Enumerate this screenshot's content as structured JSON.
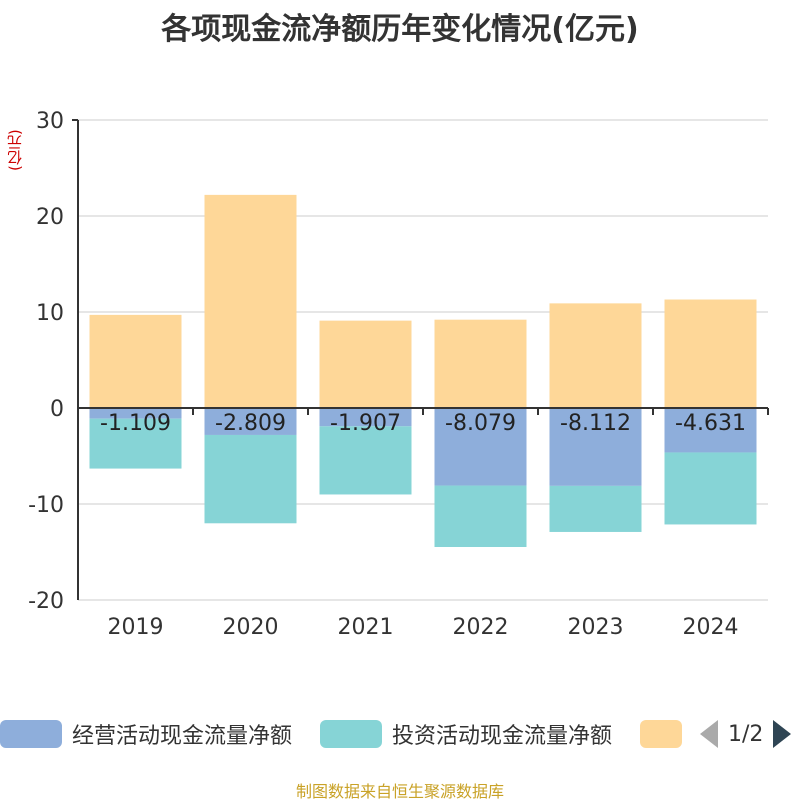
{
  "chart_data": {
    "type": "bar",
    "stacked": true,
    "title": "各项现金流净额历年变化情况(亿元)",
    "ylabel": "(亿元)",
    "ylim": [
      -20,
      30
    ],
    "yticks": [
      30,
      20,
      10,
      0,
      -10,
      -20
    ],
    "categories": [
      "2019",
      "2020",
      "2021",
      "2022",
      "2023",
      "2024"
    ],
    "series": [
      {
        "name": "经营活动现金流量净额",
        "color": "#8eaedb",
        "values": [
          -1.109,
          -2.809,
          -1.907,
          -8.079,
          -8.112,
          -4.631
        ],
        "labels": [
          "-1.109",
          "-2.809",
          "-1.907",
          "-8.079",
          "-8.112",
          "-4.631"
        ]
      },
      {
        "name": "投资活动现金流量净额",
        "color": "#86d4d6",
        "values": [
          -5.2,
          -9.2,
          -7.1,
          -6.4,
          -4.8,
          -7.5
        ]
      },
      {
        "name": "",
        "color": "#fed798",
        "values": [
          9.7,
          22.2,
          9.1,
          9.2,
          10.9,
          11.3
        ]
      }
    ],
    "legend": {
      "items": [
        {
          "label": "经营活动现金流量净额",
          "color": "#8eaedb"
        },
        {
          "label": "投资活动现金流量净额",
          "color": "#86d4d6"
        },
        {
          "label": "",
          "color": "#fed798"
        }
      ],
      "page": "1/2"
    },
    "source": "制图数据来自恒生聚源数据库"
  }
}
